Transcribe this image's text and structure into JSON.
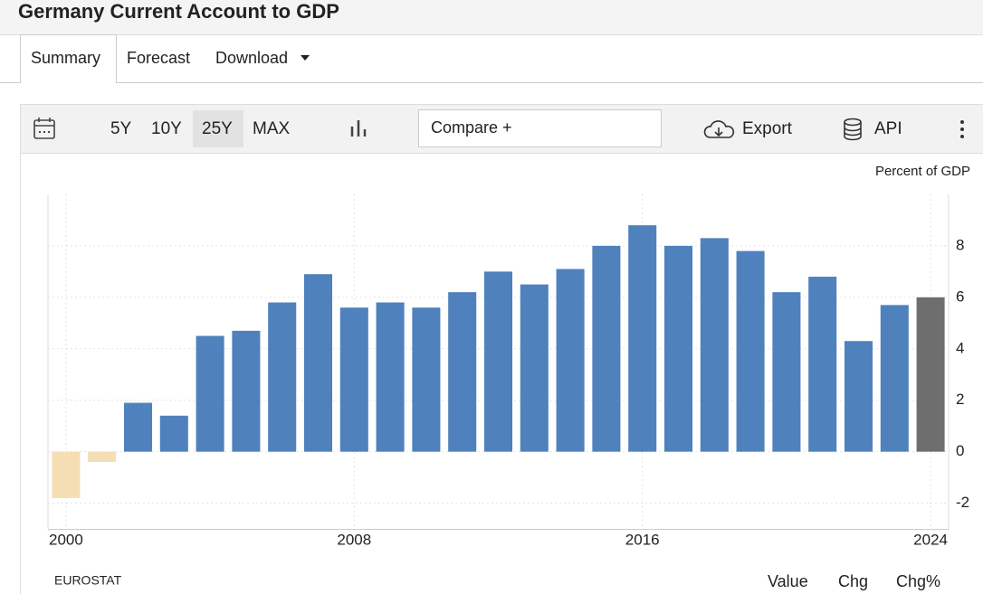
{
  "header": {
    "title": "Germany Current Account to GDP"
  },
  "tabs": [
    "Summary",
    "Forecast",
    "Download"
  ],
  "toolbar": {
    "ranges": [
      "5Y",
      "10Y",
      "25Y",
      "MAX"
    ],
    "compare": "Compare +",
    "export": "Export",
    "api": "API"
  },
  "chart_data": {
    "type": "bar",
    "unit_label": "Percent of GDP",
    "x": [
      2000,
      2001,
      2002,
      2003,
      2004,
      2005,
      2006,
      2007,
      2008,
      2009,
      2010,
      2011,
      2012,
      2013,
      2014,
      2015,
      2016,
      2017,
      2018,
      2019,
      2020,
      2021,
      2022,
      2023,
      2024
    ],
    "values": [
      -1.8,
      -0.4,
      1.9,
      1.4,
      4.5,
      4.7,
      5.8,
      6.9,
      5.6,
      5.8,
      5.6,
      6.2,
      7.0,
      6.5,
      7.1,
      8.0,
      8.8,
      8.0,
      8.3,
      7.8,
      6.2,
      6.8,
      4.3,
      5.7,
      6.0
    ],
    "color": "#4f81bd",
    "negative_color": "#f5deb3",
    "latest_color": "#6e6e6e",
    "xlim": [
      1999.5,
      2024.5
    ],
    "xticks": [
      2000,
      2008,
      2016,
      2024
    ],
    "ylim": [
      -3,
      10
    ],
    "yticks": [
      -2,
      0,
      2,
      4,
      6,
      8
    ],
    "grid": true
  },
  "footer": {
    "source": "EUROSTAT",
    "views": [
      "Value",
      "Chg",
      "Chg%"
    ]
  }
}
